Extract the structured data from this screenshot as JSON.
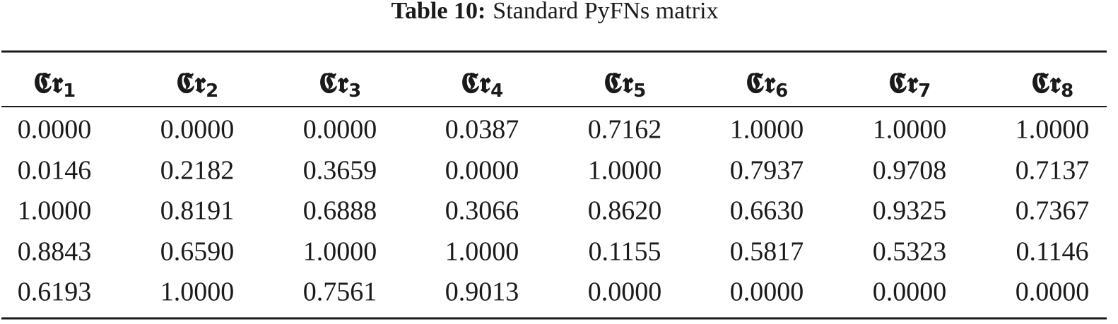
{
  "title": {
    "label": "Table 10:",
    "text": "Standard PyFNs matrix"
  },
  "table": {
    "header": [
      {
        "base": "𝕮̀𝖗",
        "sub": "1"
      },
      {
        "base": "𝕮̀𝖗",
        "sub": "2"
      },
      {
        "base": "𝕮̀𝖗",
        "sub": "3"
      },
      {
        "base": "𝕮̀𝖗",
        "sub": "4"
      },
      {
        "base": "𝕮̀𝖗",
        "sub": "5"
      },
      {
        "base": "𝕮̀𝖗",
        "sub": "6"
      },
      {
        "base": "𝕮̀𝖗",
        "sub": "7"
      },
      {
        "base": "𝕮̀𝖗",
        "sub": "8"
      }
    ],
    "rows": [
      [
        "0.0000",
        "0.0000",
        "0.0000",
        "0.0387",
        "0.7162",
        "1.0000",
        "1.0000",
        "1.0000"
      ],
      [
        "0.0146",
        "0.2182",
        "0.3659",
        "0.0000",
        "1.0000",
        "0.7937",
        "0.9708",
        "0.7137"
      ],
      [
        "1.0000",
        "0.8191",
        "0.6888",
        "0.3066",
        "0.8620",
        "0.6630",
        "0.9325",
        "0.7367"
      ],
      [
        "0.8843",
        "0.6590",
        "1.0000",
        "1.0000",
        "0.1155",
        "0.5817",
        "0.5323",
        "0.1146"
      ],
      [
        "0.6193",
        "1.0000",
        "0.7561",
        "0.9013",
        "0.0000",
        "0.0000",
        "0.0000",
        "0.0000"
      ]
    ]
  }
}
